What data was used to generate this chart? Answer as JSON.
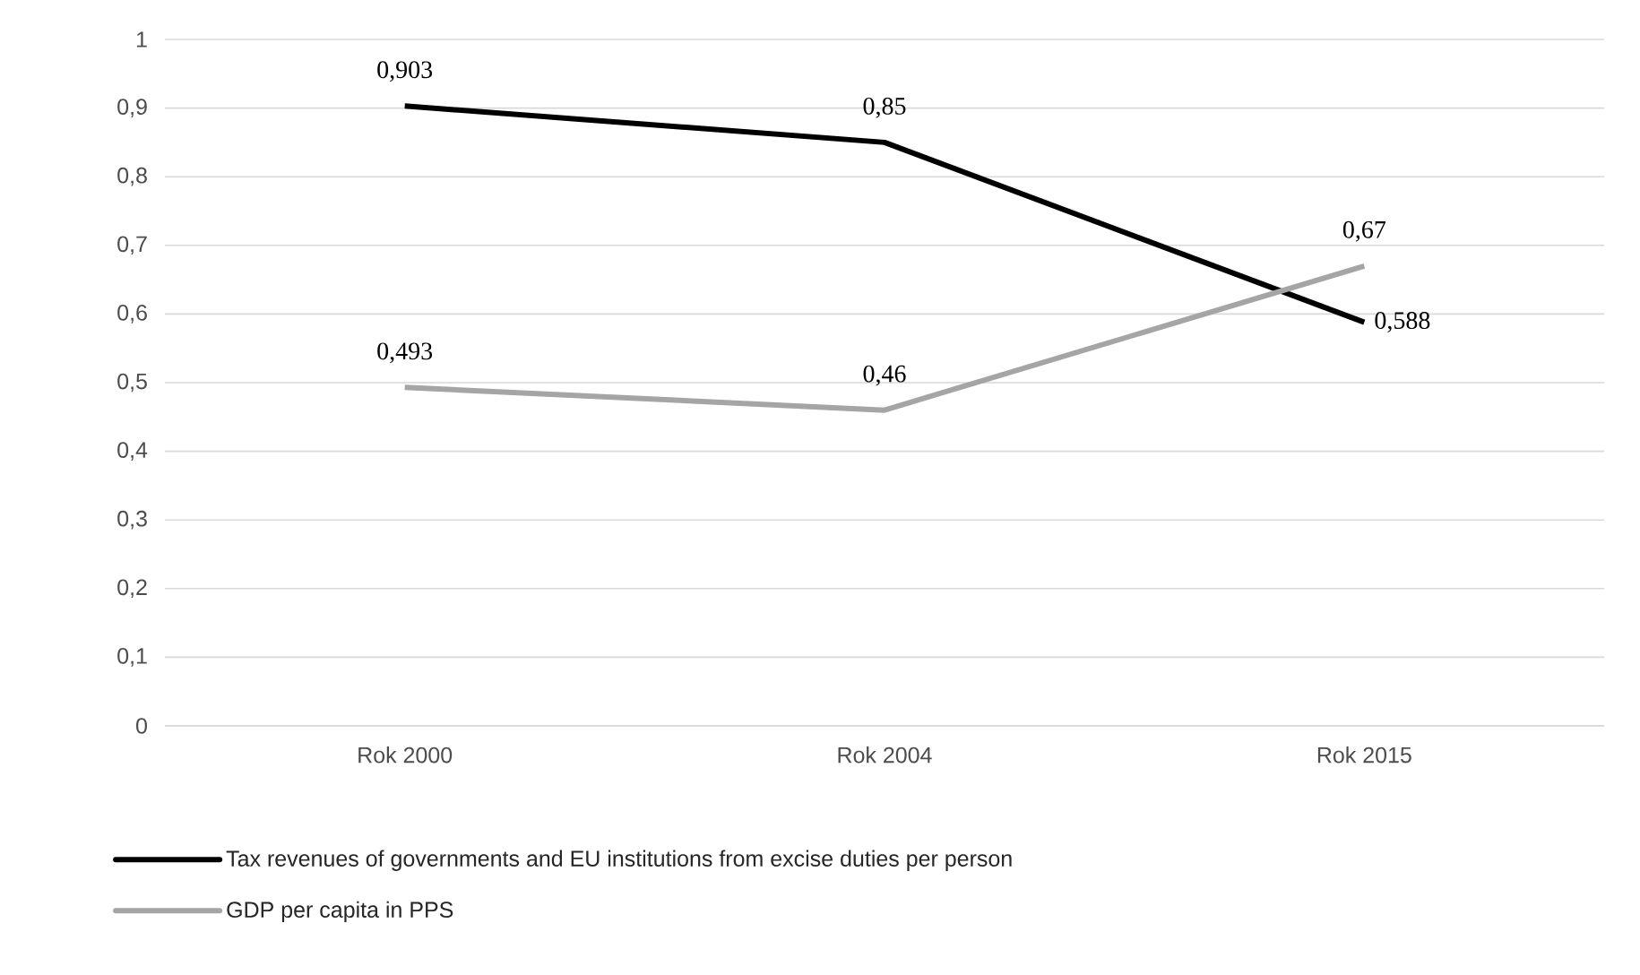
{
  "chart_data": {
    "type": "line",
    "categories": [
      "Rok 2000",
      "Rok 2004",
      "Rok 2015"
    ],
    "series": [
      {
        "name": "Tax revenues of governments and EU institutions from excise duties per person",
        "color": "#000000",
        "values": [
          0.903,
          0.85,
          0.588
        ],
        "value_labels": [
          "0,903",
          "0,85",
          "0,588"
        ]
      },
      {
        "name": "GDP per capita in PPS",
        "color": "#a5a5a5",
        "values": [
          0.493,
          0.46,
          0.67
        ],
        "value_labels": [
          "0,493",
          "0,46",
          "0,67"
        ]
      }
    ],
    "ylim": [
      0,
      1
    ],
    "yticks": [
      {
        "value": 0,
        "label": "0"
      },
      {
        "value": 0.1,
        "label": "0,1"
      },
      {
        "value": 0.2,
        "label": "0,2"
      },
      {
        "value": 0.3,
        "label": "0,3"
      },
      {
        "value": 0.4,
        "label": "0,4"
      },
      {
        "value": 0.5,
        "label": "0,5"
      },
      {
        "value": 0.6,
        "label": "0,6"
      },
      {
        "value": 0.7,
        "label": "0,7"
      },
      {
        "value": 0.8,
        "label": "0,8"
      },
      {
        "value": 0.9,
        "label": "0,9"
      },
      {
        "value": 1,
        "label": "1"
      }
    ],
    "grid": "y",
    "legend": "bottom",
    "marker": "none",
    "line_style": "solid"
  }
}
